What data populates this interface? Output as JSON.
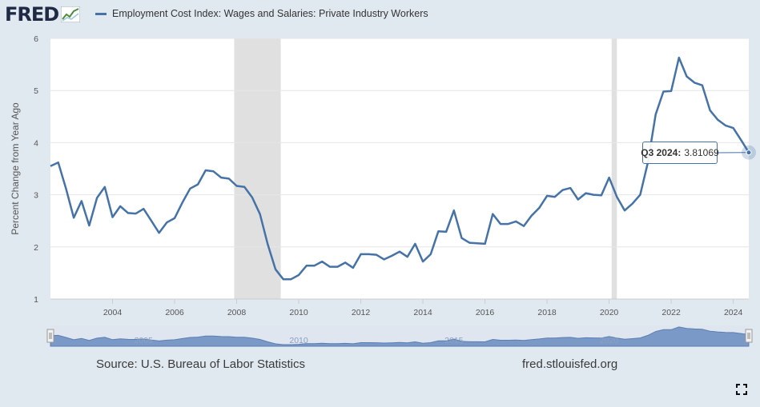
{
  "header": {
    "logo_text": "FRED",
    "logo_icon": "line-graph-icon",
    "legend_label": "Employment Cost Index: Wages and Salaries: Private Industry Workers",
    "series_color": "#4572a7"
  },
  "tooltip": {
    "period": "Q3 2024:",
    "value": "3.81069"
  },
  "footer": {
    "source": "Source: U.S. Bureau of Labor Statistics",
    "site": "fred.stlouisfed.org"
  },
  "controls": {
    "fullscreen_icon": "fullscreen-icon"
  },
  "chart_data": {
    "type": "line",
    "title": "",
    "xlabel": "",
    "ylabel": "Percent Change from Year Ago",
    "xlim": [
      2002.0,
      2024.5
    ],
    "ylim": [
      1,
      6
    ],
    "y_ticks": [
      1,
      2,
      3,
      4,
      5,
      6
    ],
    "x_ticks": [
      2004,
      2006,
      2008,
      2010,
      2012,
      2014,
      2016,
      2018,
      2020,
      2022,
      2024
    ],
    "grid": "horizontal",
    "legend_position": "top",
    "recessions": [
      [
        2007.92,
        2009.42
      ],
      [
        2020.08,
        2020.25
      ]
    ],
    "navigator_ticks": [
      "2005",
      "2010",
      "2015",
      "2020"
    ],
    "series": [
      {
        "name": "Employment Cost Index: Wages and Salaries: Private Industry Workers",
        "color": "#4572a7",
        "x": [
          2002.0,
          2002.25,
          2002.5,
          2002.75,
          2003.0,
          2003.25,
          2003.5,
          2003.75,
          2004.0,
          2004.25,
          2004.5,
          2004.75,
          2005.0,
          2005.25,
          2005.5,
          2005.75,
          2006.0,
          2006.25,
          2006.5,
          2006.75,
          2007.0,
          2007.25,
          2007.5,
          2007.75,
          2008.0,
          2008.25,
          2008.5,
          2008.75,
          2009.0,
          2009.25,
          2009.5,
          2009.75,
          2010.0,
          2010.25,
          2010.5,
          2010.75,
          2011.0,
          2011.25,
          2011.5,
          2011.75,
          2012.0,
          2012.25,
          2012.5,
          2012.75,
          2013.0,
          2013.25,
          2013.5,
          2013.75,
          2014.0,
          2014.25,
          2014.5,
          2014.75,
          2015.0,
          2015.25,
          2015.5,
          2015.75,
          2016.0,
          2016.25,
          2016.5,
          2016.75,
          2017.0,
          2017.25,
          2017.5,
          2017.75,
          2018.0,
          2018.25,
          2018.5,
          2018.75,
          2019.0,
          2019.25,
          2019.5,
          2019.75,
          2020.0,
          2020.25,
          2020.5,
          2020.75,
          2021.0,
          2021.25,
          2021.5,
          2021.75,
          2022.0,
          2022.25,
          2022.5,
          2022.75,
          2023.0,
          2023.25,
          2023.5,
          2023.75,
          2024.0,
          2024.25,
          2024.5
        ],
        "values": [
          3.55,
          3.62,
          3.12,
          2.56,
          2.88,
          2.41,
          2.94,
          3.15,
          2.57,
          2.78,
          2.65,
          2.64,
          2.73,
          2.5,
          2.27,
          2.47,
          2.55,
          2.85,
          3.12,
          3.2,
          3.47,
          3.45,
          3.33,
          3.31,
          3.17,
          3.15,
          2.95,
          2.63,
          2.05,
          1.57,
          1.38,
          1.38,
          1.46,
          1.64,
          1.64,
          1.72,
          1.62,
          1.62,
          1.7,
          1.6,
          1.86,
          1.86,
          1.85,
          1.76,
          1.83,
          1.91,
          1.81,
          2.06,
          1.72,
          1.86,
          2.3,
          2.29,
          2.7,
          2.17,
          2.08,
          2.07,
          2.06,
          2.63,
          2.44,
          2.44,
          2.49,
          2.4,
          2.6,
          2.75,
          2.98,
          2.96,
          3.09,
          3.13,
          2.91,
          3.03,
          3.0,
          2.99,
          3.33,
          2.96,
          2.7,
          2.83,
          3.0,
          3.62,
          4.54,
          4.98,
          4.99,
          5.63,
          5.27,
          5.15,
          5.1,
          4.62,
          4.44,
          4.33,
          4.28,
          4.05,
          3.81069
        ]
      }
    ]
  }
}
